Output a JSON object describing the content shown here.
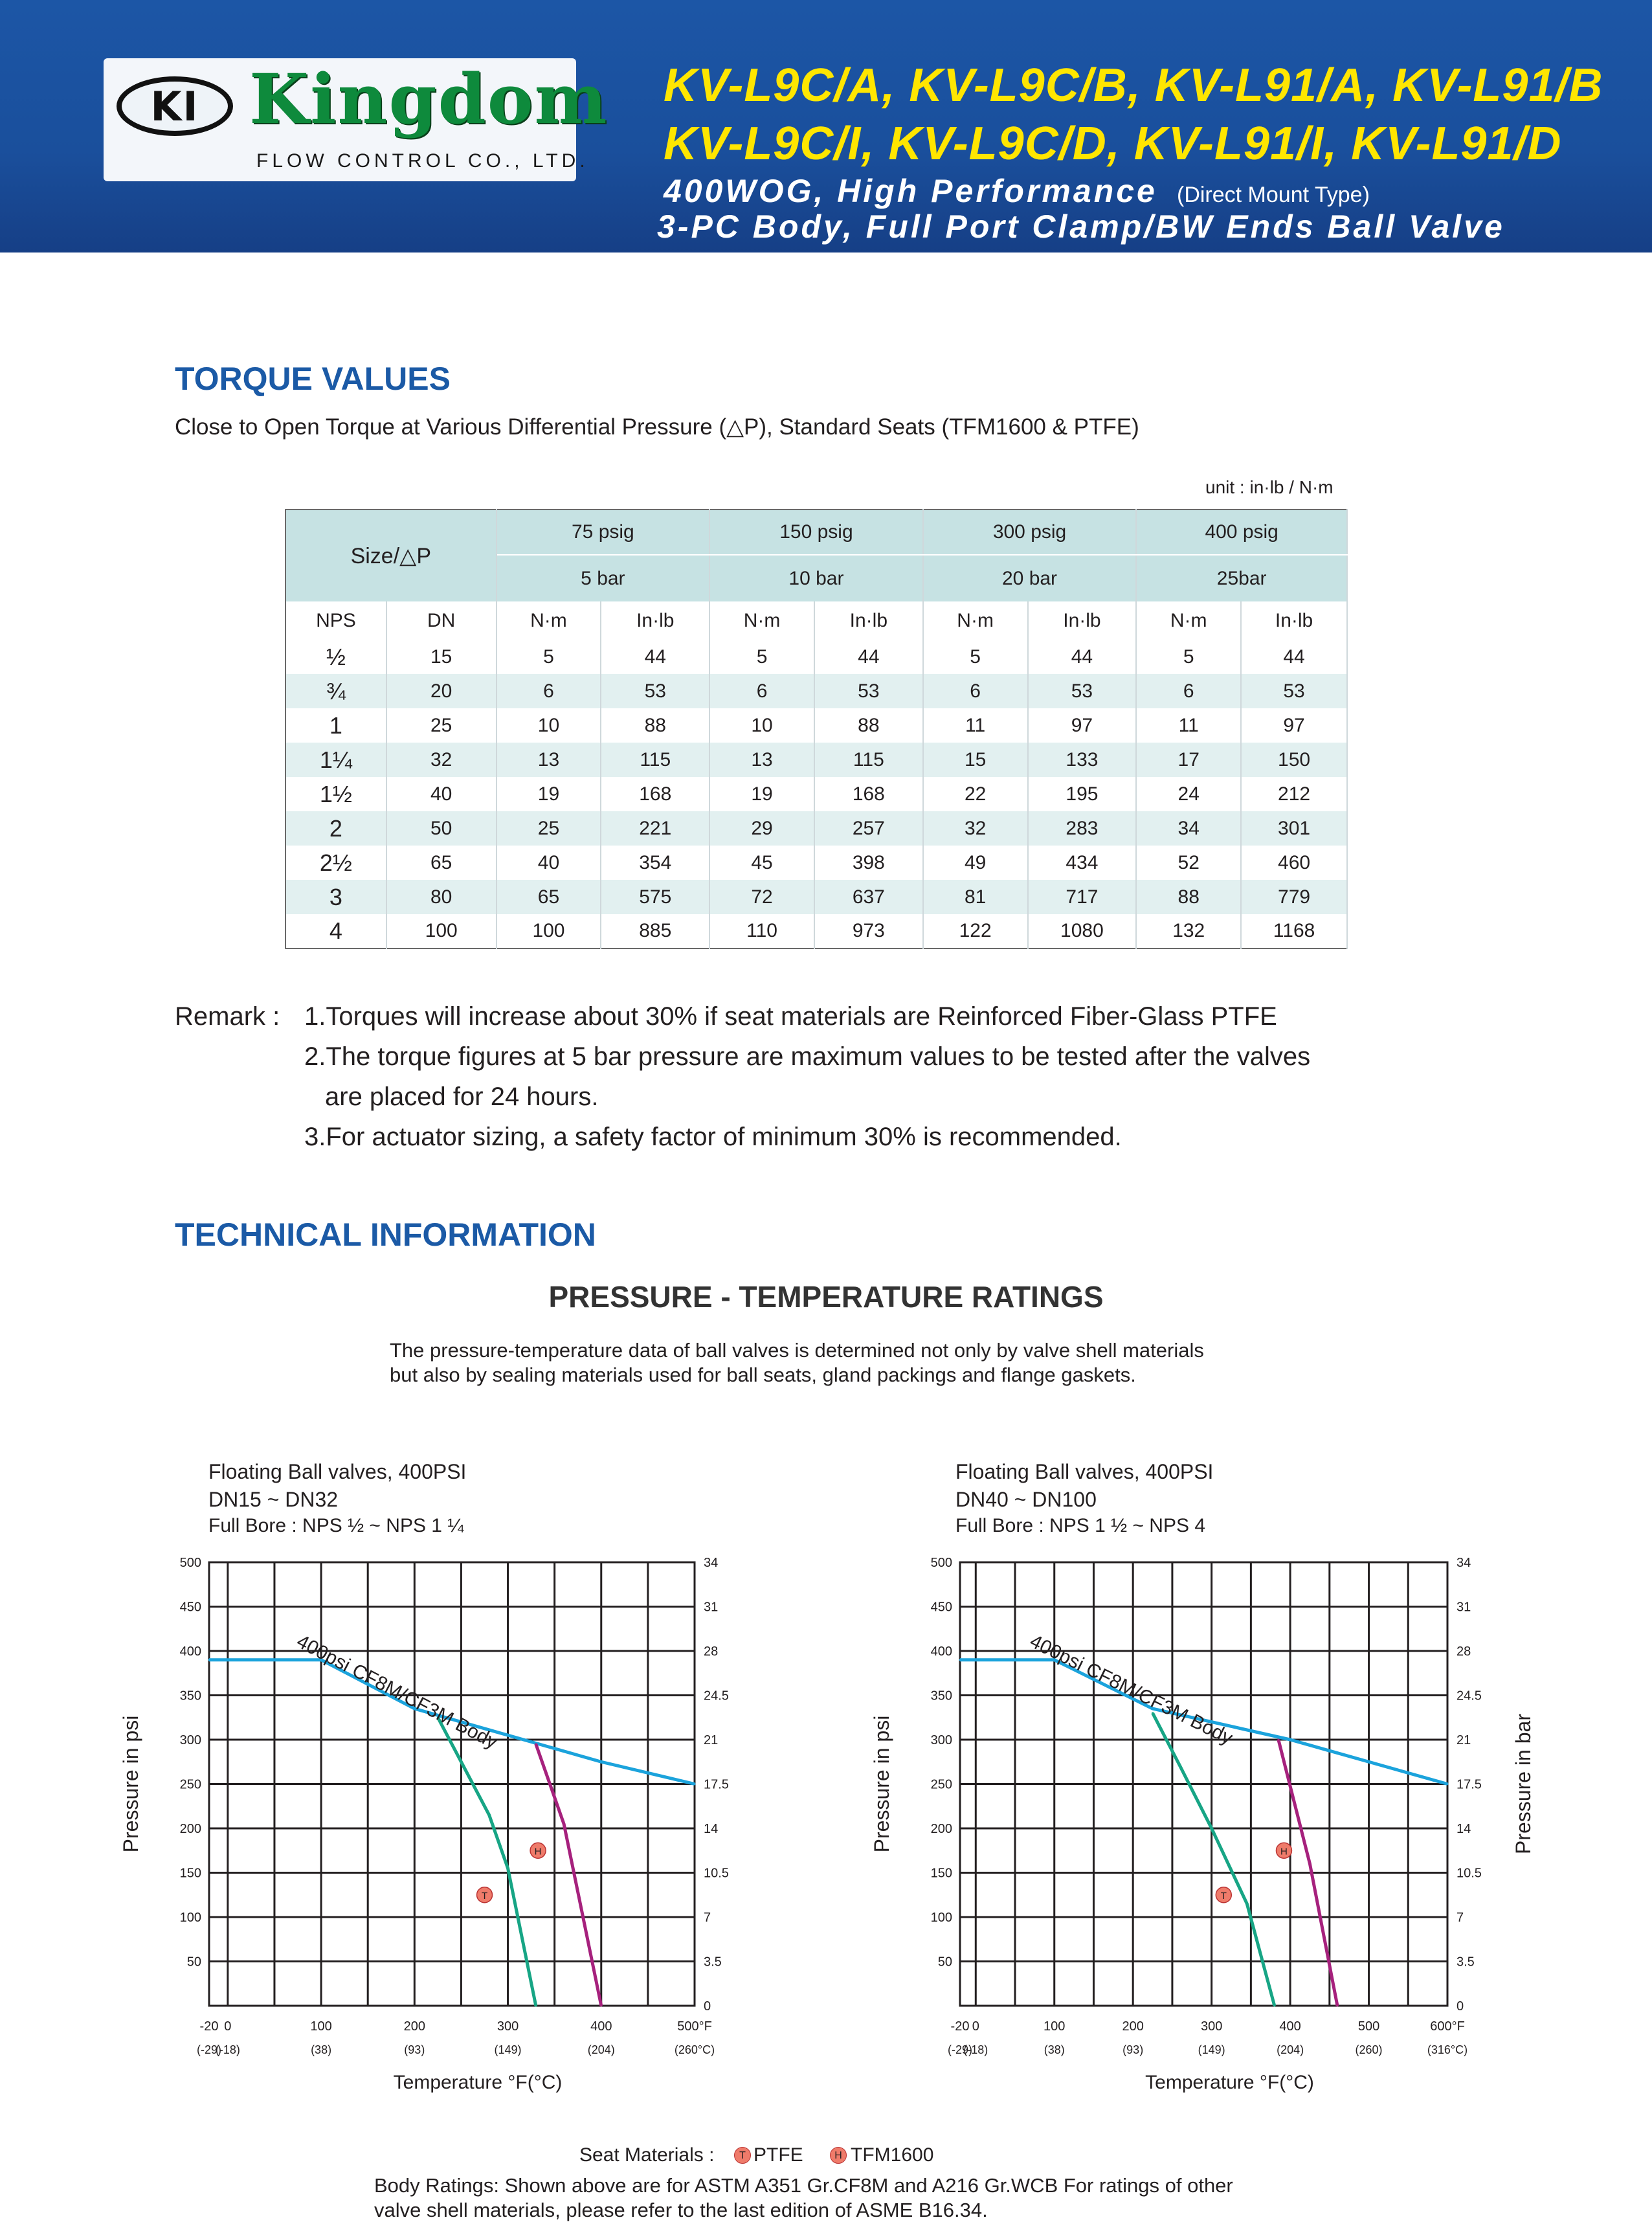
{
  "header": {
    "logo_mark": "KI",
    "logo_word": "Kingdom",
    "logo_sub": "FLOW CONTROL CO., LTD.",
    "model_line_1": "KV-L9C/A, KV-L9C/B, KV-L91/A, KV-L91/B",
    "model_line_2": "KV-L9C/I, KV-L9C/D, KV-L91/I, KV-L91/D",
    "subtitle_1": "400WOG, High Performance",
    "subtitle_note": "(Direct Mount Type)",
    "subtitle_2": "3-PC Body,  Full Port Clamp/BW Ends Ball Valve",
    "colors": {
      "band": "#1a4f9c",
      "model": "#ffe600",
      "logo_green": "#0e8a3c"
    }
  },
  "torque": {
    "title": "TORQUE VALUES",
    "description": "Close to Open Torque at Various Differential Pressure (△P), Standard Seats (TFM1600 & PTFE)",
    "unit": "unit : in·lb / N·m",
    "size_header": "Size/△P",
    "psig": [
      "75 psig",
      "150 psig",
      "300 psig",
      "400 psig"
    ],
    "bar": [
      "5 bar",
      "10 bar",
      "20 bar",
      "25bar"
    ],
    "col_headers": [
      "NPS",
      "DN",
      "N·m",
      "In·lb",
      "N·m",
      "In·lb",
      "N·m",
      "In·lb",
      "N·m",
      "In·lb"
    ],
    "rows": [
      [
        "½",
        "15",
        "5",
        "44",
        "5",
        "44",
        "5",
        "44",
        "5",
        "44"
      ],
      [
        "¾",
        "20",
        "6",
        "53",
        "6",
        "53",
        "6",
        "53",
        "6",
        "53"
      ],
      [
        "1",
        "25",
        "10",
        "88",
        "10",
        "88",
        "11",
        "97",
        "11",
        "97"
      ],
      [
        "1¼",
        "32",
        "13",
        "115",
        "13",
        "115",
        "15",
        "133",
        "17",
        "150"
      ],
      [
        "1½",
        "40",
        "19",
        "168",
        "19",
        "168",
        "22",
        "195",
        "24",
        "212"
      ],
      [
        "2",
        "50",
        "25",
        "221",
        "29",
        "257",
        "32",
        "283",
        "34",
        "301"
      ],
      [
        "2½",
        "65",
        "40",
        "354",
        "45",
        "398",
        "49",
        "434",
        "52",
        "460"
      ],
      [
        "3",
        "80",
        "65",
        "575",
        "72",
        "637",
        "81",
        "717",
        "88",
        "779"
      ],
      [
        "4",
        "100",
        "100",
        "885",
        "110",
        "973",
        "122",
        "1080",
        "132",
        "1168"
      ]
    ],
    "remark_label": "Remark :",
    "remarks": [
      "1.Torques will increase about 30% if seat materials are Reinforced Fiber-Glass PTFE",
      "2.The torque figures at 5 bar pressure are maximum values to be tested after the valves",
      "are placed for 24 hours.",
      "3.For actuator sizing, a safety factor of minimum 30% is recommended."
    ]
  },
  "technical": {
    "title": "TECHNICAL INFORMATION",
    "chart_heading": "PRESSURE - TEMPERATURE RATINGS",
    "intro_1": "The pressure-temperature data of ball valves is determined not only by valve shell materials",
    "intro_2": "but also by sealing materials used for ball seats, gland packings and flange gaskets.",
    "seat_label": "Seat Materials :",
    "seat_t_marker": "T",
    "seat_t": "PTFE",
    "seat_h_marker": "H",
    "seat_h": "TFM1600",
    "body_ratings_1": "Body Ratings: Shown above are for ASTM A351 Gr.CF8M and A216 Gr.WCB For ratings of other",
    "body_ratings_2": "valve shell materials, please refer to the last edition of ASME B16.34."
  },
  "chart_data": [
    {
      "type": "line",
      "title_1": "Floating Ball valves, 400PSI",
      "title_2": "DN15 ~ DN32",
      "title_3": "Full Bore : NPS ½ ~ NPS 1 ¼",
      "ylabel": "Pressure in psi",
      "ylabel_right": "Pressure in bar",
      "xlabel": "Temperature °F(°C)",
      "xlim": [
        -20,
        500
      ],
      "ylim": [
        0,
        500
      ],
      "x_ticks": [
        "-20",
        "0",
        "100",
        "200",
        "300",
        "400",
        "500°F"
      ],
      "x_ticks_c": [
        "(-29)",
        "(-18)",
        "(38)",
        "(93)",
        "(149)",
        "(204)",
        "(260°C)"
      ],
      "y_ticks": [
        "50",
        "100",
        "150",
        "200",
        "250",
        "300",
        "350",
        "400",
        "450",
        "500"
      ],
      "y_ticks_bar": [
        "0",
        "3.5",
        "7",
        "10.5",
        "14",
        "17.5",
        "21",
        "24.5",
        "28",
        "31",
        "34"
      ],
      "series": [
        {
          "name": "400psi  CF8M/CF3M Body",
          "color": "#1ba3dc",
          "x": [
            -20,
            100,
            200,
            300,
            400,
            500
          ],
          "y": [
            390,
            390,
            335,
            305,
            275,
            250
          ]
        },
        {
          "name": "T",
          "color": "#17a585",
          "x": [
            225,
            255,
            280,
            300,
            330
          ],
          "y": [
            325,
            265,
            215,
            155,
            0
          ]
        },
        {
          "name": "H",
          "color": "#a6217d",
          "x": [
            330,
            360,
            400
          ],
          "y": [
            295,
            205,
            0
          ]
        }
      ]
    },
    {
      "type": "line",
      "title_1": "Floating Ball valves, 400PSI",
      "title_2": "DN40 ~ DN100",
      "title_3": "Full Bore : NPS 1 ½ ~ NPS 4",
      "ylabel": "Pressure in psi",
      "ylabel_right": "Pressure in bar",
      "xlabel": "Temperature °F(°C)",
      "xlim": [
        -20,
        600
      ],
      "ylim": [
        0,
        500
      ],
      "x_ticks": [
        "-20",
        "0",
        "100",
        "200",
        "300",
        "400",
        "500",
        "600°F"
      ],
      "x_ticks_c": [
        "(-29)",
        "(-18)",
        "(38)",
        "(93)",
        "(149)",
        "(204)",
        "(260)",
        "(316°C)"
      ],
      "y_ticks": [
        "50",
        "100",
        "150",
        "200",
        "250",
        "300",
        "350",
        "400",
        "450",
        "500"
      ],
      "y_ticks_bar": [
        "0",
        "3.5",
        "7",
        "10.5",
        "14",
        "17.5",
        "21",
        "24.5",
        "28",
        "31",
        "34"
      ],
      "series": [
        {
          "name": "400psi  CF8M/CF3M Body",
          "color": "#1ba3dc",
          "x": [
            -20,
            100,
            225,
            300,
            400,
            500,
            600
          ],
          "y": [
            390,
            390,
            335,
            320,
            300,
            275,
            250
          ]
        },
        {
          "name": "T",
          "color": "#17a585",
          "x": [
            225,
            260,
            300,
            345,
            380
          ],
          "y": [
            330,
            270,
            200,
            115,
            0
          ]
        },
        {
          "name": "H",
          "color": "#a6217d",
          "x": [
            385,
            425,
            460
          ],
          "y": [
            300,
            160,
            0
          ]
        }
      ]
    }
  ]
}
